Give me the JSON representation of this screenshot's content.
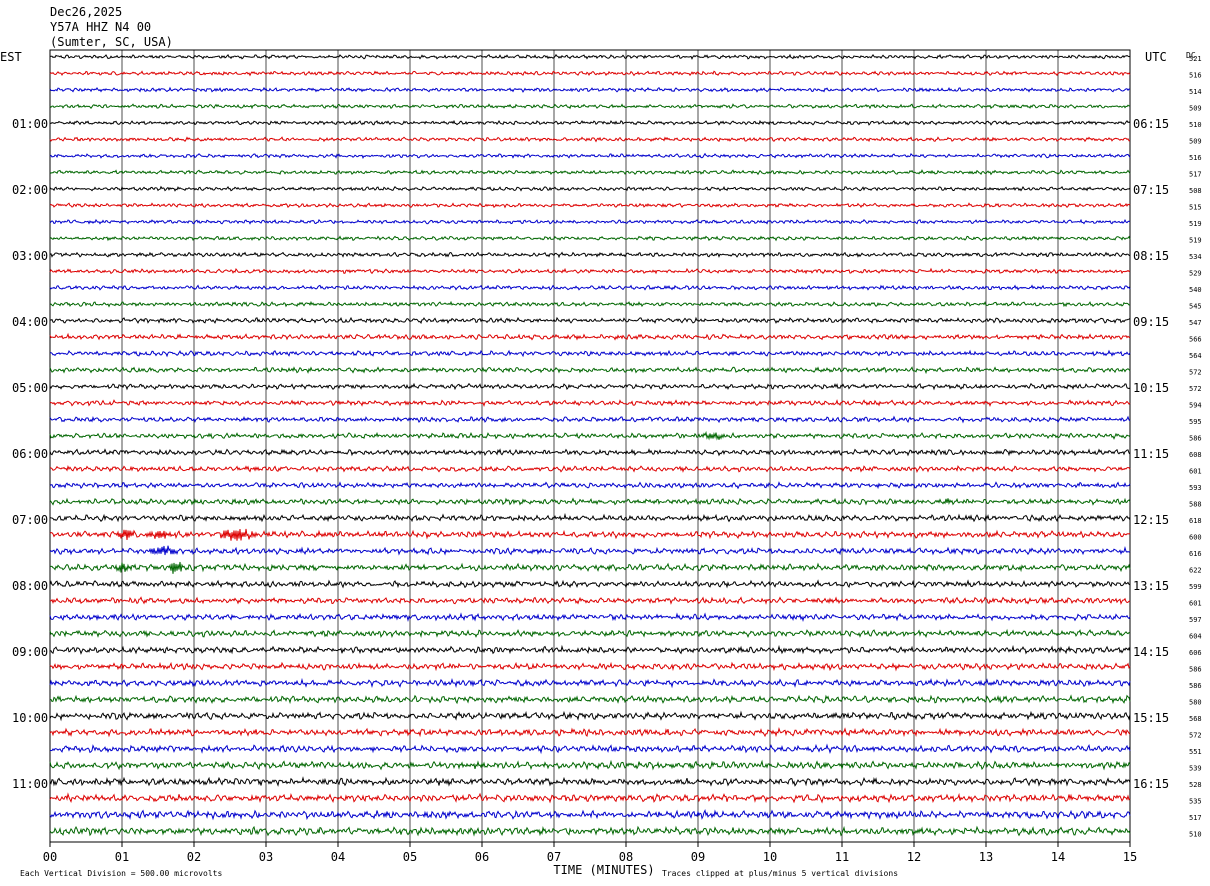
{
  "header": {
    "date": "Dec26,2025",
    "station": "Y57A HHZ N4 00",
    "location": "(Sumter, SC, USA)"
  },
  "left_zone_label": "EST",
  "right_zone_label": "UTC",
  "dc_label": "DC",
  "footer": {
    "scale_note": "Each Vertical Division =  500.00 microvolts",
    "clip_note": "Traces clipped at plus/minus 5 vertical divisions"
  },
  "colors": {
    "trace_cycle": [
      "#000000",
      "#dd0000",
      "#0000cc",
      "#006600"
    ],
    "grid": "#000000",
    "background": "#ffffff"
  },
  "chart_data": {
    "type": "line",
    "xlabel": "TIME (MINUTES)",
    "xlim": [
      0,
      15
    ],
    "x_ticks": [
      "00",
      "01",
      "02",
      "03",
      "04",
      "05",
      "06",
      "07",
      "08",
      "09",
      "10",
      "11",
      "12",
      "13",
      "14",
      "15"
    ],
    "rows_per_hour": 4,
    "minutes_per_row": 15,
    "left_hour_labels": [
      "01:00",
      "02:00",
      "03:00",
      "04:00",
      "05:00",
      "06:00",
      "07:00",
      "08:00",
      "09:00",
      "10:00",
      "11:00"
    ],
    "right_hour_labels": [
      "06:15",
      "07:15",
      "08:15",
      "09:15",
      "10:15",
      "11:15",
      "12:15",
      "13:15",
      "14:15",
      "15:15",
      "16:15"
    ],
    "hour_label_first_row": 4,
    "dc_offsets": [
      521,
      516,
      514,
      509,
      510,
      509,
      516,
      517,
      508,
      515,
      519,
      519,
      534,
      529,
      540,
      545,
      547,
      566,
      564,
      572,
      572,
      594,
      595,
      586,
      608,
      601,
      593,
      588,
      618,
      600,
      616,
      622,
      599,
      601,
      597,
      604,
      606,
      586,
      586,
      580,
      568,
      572,
      551,
      539,
      528,
      535,
      517,
      510
    ],
    "row_activity": [
      1.0,
      1.0,
      1.0,
      1.0,
      1.0,
      1.0,
      1.0,
      1.0,
      1.0,
      1.0,
      1.0,
      1.0,
      1.1,
      1.1,
      1.1,
      1.1,
      1.3,
      1.3,
      1.3,
      1.3,
      1.3,
      1.3,
      1.3,
      1.4,
      1.4,
      1.4,
      1.4,
      1.5,
      1.6,
      1.7,
      1.6,
      1.7,
      1.6,
      1.6,
      1.6,
      1.7,
      1.7,
      1.7,
      1.7,
      1.8,
      1.8,
      1.8,
      1.8,
      1.9,
      1.9,
      2.0,
      2.0,
      2.0
    ],
    "events": [
      {
        "row": 29,
        "start_min": 0.9,
        "end_min": 1.2,
        "amplitude": 4.5
      },
      {
        "row": 29,
        "start_min": 1.3,
        "end_min": 1.7,
        "amplitude": 3.0
      },
      {
        "row": 29,
        "start_min": 2.3,
        "end_min": 2.9,
        "amplitude": 4.0
      },
      {
        "row": 30,
        "start_min": 1.3,
        "end_min": 1.8,
        "amplitude": 3.0
      },
      {
        "row": 31,
        "start_min": 0.9,
        "end_min": 1.1,
        "amplitude": 3.0
      },
      {
        "row": 31,
        "start_min": 1.65,
        "end_min": 1.85,
        "amplitude": 5.5
      },
      {
        "row": 23,
        "start_min": 9.0,
        "end_min": 9.4,
        "amplitude": 2.0
      },
      {
        "row": 27,
        "start_min": 12.3,
        "end_min": 12.6,
        "amplitude": 2.5
      }
    ]
  }
}
